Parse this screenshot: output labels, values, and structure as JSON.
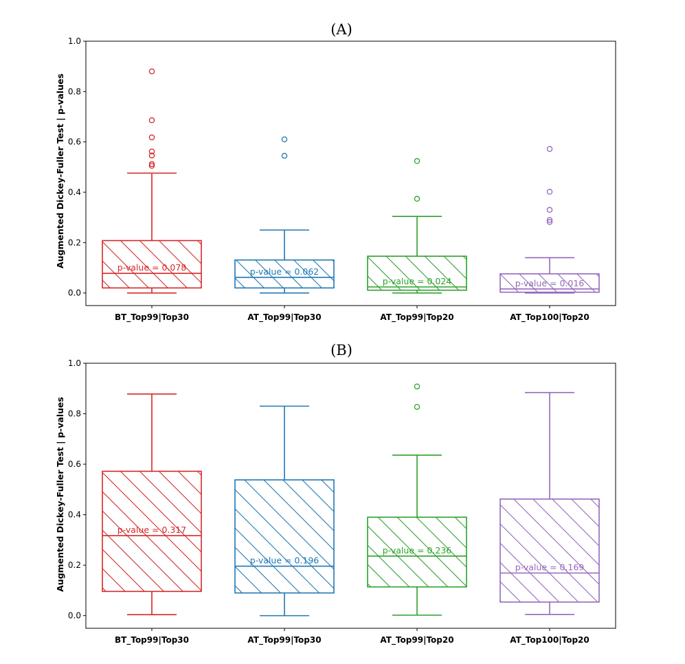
{
  "chart_data": [
    {
      "type": "box",
      "title": "(A)",
      "ylabel": "Augmented Dickey-Fuller Test | p-values",
      "xlabel": "",
      "ylim": [
        -0.05,
        1.0
      ],
      "yticks": [
        0.0,
        0.2,
        0.4,
        0.6,
        0.8,
        1.0
      ],
      "ytick_labels": [
        "0.0",
        "0.2",
        "0.4",
        "0.6",
        "0.8",
        "1.0"
      ],
      "categories": [
        "BT_Top99|Top30",
        "AT_Top99|Top30",
        "AT_Top99|Top20",
        "AT_Top100|Top20"
      ],
      "boxes": [
        {
          "name": "BT_Top99|Top30",
          "color": "#d62728",
          "whisker_low": 0.0,
          "q1": 0.02,
          "median": 0.078,
          "q3": 0.208,
          "whisker_high": 0.476,
          "outliers": [
            0.88,
            0.686,
            0.618,
            0.562,
            0.546,
            0.512,
            0.505
          ],
          "label": "p-value = 0.078"
        },
        {
          "name": "AT_Top99|Top30",
          "color": "#1f77b4",
          "whisker_low": 0.0,
          "q1": 0.02,
          "median": 0.062,
          "q3": 0.131,
          "whisker_high": 0.25,
          "outliers": [
            0.61,
            0.545
          ],
          "label": "p-value = 0.062"
        },
        {
          "name": "AT_Top99|Top20",
          "color": "#2ca02c",
          "whisker_low": 0.0,
          "q1": 0.011,
          "median": 0.024,
          "q3": 0.146,
          "whisker_high": 0.304,
          "outliers": [
            0.524,
            0.374
          ],
          "label": "p-value = 0.024"
        },
        {
          "name": "AT_Top100|Top20",
          "color": "#9467bd",
          "whisker_low": 0.0,
          "q1": 0.003,
          "median": 0.016,
          "q3": 0.076,
          "whisker_high": 0.14,
          "outliers": [
            0.572,
            0.402,
            0.33,
            0.29,
            0.282
          ],
          "label": "p-value = 0.016"
        }
      ]
    },
    {
      "type": "box",
      "title": "(B)",
      "ylabel": "Augmented Dickey-Fuller Test | p-values",
      "xlabel": "",
      "ylim": [
        -0.05,
        1.0
      ],
      "yticks": [
        0.0,
        0.2,
        0.4,
        0.6,
        0.8,
        1.0
      ],
      "ytick_labels": [
        "0.0",
        "0.2",
        "0.4",
        "0.6",
        "0.8",
        "1.0"
      ],
      "categories": [
        "BT_Top99|Top30",
        "AT_Top99|Top30",
        "AT_Top99|Top20",
        "AT_Top100|Top20"
      ],
      "boxes": [
        {
          "name": "BT_Top99|Top30",
          "color": "#d62728",
          "whisker_low": 0.004,
          "q1": 0.096,
          "median": 0.317,
          "q3": 0.572,
          "whisker_high": 0.878,
          "outliers": [],
          "label": "p-value = 0.317"
        },
        {
          "name": "AT_Top99|Top30",
          "color": "#1f77b4",
          "whisker_low": 0.0,
          "q1": 0.09,
          "median": 0.196,
          "q3": 0.538,
          "whisker_high": 0.83,
          "outliers": [],
          "label": "p-value = 0.196"
        },
        {
          "name": "AT_Top99|Top20",
          "color": "#2ca02c",
          "whisker_low": 0.002,
          "q1": 0.114,
          "median": 0.236,
          "q3": 0.39,
          "whisker_high": 0.636,
          "outliers": [
            0.908,
            0.827
          ],
          "label": "p-value = 0.236"
        },
        {
          "name": "AT_Top100|Top20",
          "color": "#9467bd",
          "whisker_low": 0.005,
          "q1": 0.054,
          "median": 0.169,
          "q3": 0.462,
          "whisker_high": 0.884,
          "outliers": [],
          "label": "p-value = 0.169"
        }
      ]
    }
  ]
}
